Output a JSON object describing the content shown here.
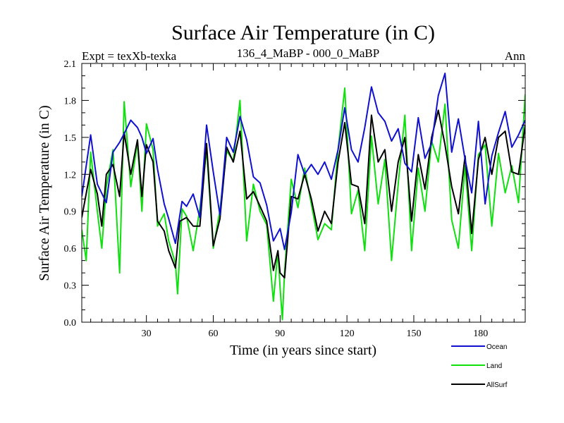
{
  "chart_data": {
    "type": "line",
    "title": "Surface Air Temperature (in C)",
    "left_label": "Expt = texXb-texka",
    "center_label": "136_4_MaBP - 000_0_MaBP",
    "right_label": "Ann",
    "xlabel": "Time (in years since start)",
    "ylabel": "Surface Air Temperature (in C)",
    "xlim": [
      1,
      200
    ],
    "ylim": [
      0.0,
      2.1
    ],
    "x_ticks": [
      30,
      60,
      90,
      120,
      150,
      180
    ],
    "x_tick_labels": [
      "30",
      "60",
      "90",
      "120",
      "150",
      "180"
    ],
    "y_ticks": [
      0.0,
      0.3,
      0.6,
      0.9,
      1.2,
      1.5,
      1.8,
      2.1
    ],
    "y_tick_labels": [
      "0.0",
      "0.3",
      "0.6",
      "0.9",
      "1.2",
      "1.5",
      "1.8",
      "2.1"
    ],
    "grid": false,
    "legend_position": "bottom-right",
    "series": [
      {
        "name": "Ocean",
        "color": "#1010d0",
        "x": [
          1,
          5,
          8,
          12,
          15,
          18,
          20,
          23,
          26,
          28,
          30,
          33,
          35,
          38,
          40,
          43,
          46,
          48,
          51,
          54,
          57,
          60,
          63,
          66,
          69,
          72,
          75,
          78,
          81,
          84,
          87,
          90,
          92,
          95,
          98,
          101,
          104,
          107,
          110,
          113,
          116,
          119,
          122,
          125,
          128,
          131,
          134,
          137,
          140,
          143,
          146,
          149,
          152,
          155,
          158,
          161,
          164,
          167,
          170,
          173,
          176,
          179,
          182,
          185,
          188,
          191,
          194,
          197,
          200
        ],
        "values": [
          1.02,
          1.52,
          1.12,
          0.97,
          1.38,
          1.46,
          1.53,
          1.64,
          1.58,
          1.5,
          1.37,
          1.49,
          1.24,
          0.96,
          0.84,
          0.64,
          0.98,
          0.94,
          1.04,
          0.85,
          1.6,
          1.22,
          0.87,
          1.5,
          1.38,
          1.67,
          1.48,
          1.18,
          1.13,
          0.95,
          0.66,
          0.76,
          0.59,
          0.89,
          1.36,
          1.2,
          1.28,
          1.2,
          1.3,
          1.16,
          1.4,
          1.74,
          1.4,
          1.3,
          1.58,
          1.91,
          1.7,
          1.63,
          1.47,
          1.57,
          1.29,
          1.22,
          1.66,
          1.33,
          1.45,
          1.84,
          2.02,
          1.38,
          1.65,
          1.32,
          1.05,
          1.63,
          0.96,
          1.35,
          1.54,
          1.71,
          1.42,
          1.52,
          1.64
        ]
      },
      {
        "name": "Land",
        "color": "#10e010",
        "x": [
          1,
          3,
          5,
          8,
          10,
          12,
          15,
          18,
          20,
          23,
          26,
          28,
          30,
          33,
          35,
          38,
          40,
          43,
          44,
          46,
          48,
          51,
          54,
          57,
          60,
          63,
          66,
          69,
          72,
          75,
          78,
          81,
          84,
          87,
          89,
          90,
          91,
          92,
          95,
          98,
          101,
          104,
          107,
          110,
          113,
          116,
          119,
          122,
          125,
          128,
          131,
          134,
          137,
          140,
          143,
          146,
          149,
          152,
          155,
          158,
          161,
          164,
          167,
          170,
          173,
          176,
          179,
          182,
          185,
          188,
          191,
          194,
          197,
          200
        ],
        "values": [
          0.75,
          0.5,
          1.38,
          0.9,
          0.6,
          1.1,
          1.4,
          0.4,
          1.79,
          1.1,
          1.46,
          0.9,
          1.61,
          1.4,
          0.78,
          0.88,
          0.66,
          0.48,
          0.23,
          0.92,
          0.86,
          0.58,
          0.92,
          1.4,
          0.6,
          0.91,
          1.39,
          1.31,
          1.8,
          0.66,
          1.12,
          0.9,
          0.79,
          0.17,
          0.58,
          0.28,
          0.02,
          0.4,
          1.16,
          0.93,
          1.25,
          0.96,
          0.67,
          0.8,
          0.75,
          1.4,
          1.9,
          0.88,
          1.07,
          0.58,
          1.51,
          0.96,
          1.32,
          0.5,
          1.12,
          1.68,
          0.58,
          1.25,
          0.9,
          1.47,
          1.3,
          1.77,
          0.83,
          0.6,
          1.27,
          0.58,
          1.36,
          1.44,
          0.78,
          1.37,
          1.05,
          1.27,
          0.97,
          1.85
        ]
      },
      {
        "name": "AllSurf",
        "color": "#000000",
        "x": [
          1,
          5,
          8,
          10,
          12,
          15,
          18,
          20,
          23,
          26,
          28,
          30,
          33,
          35,
          38,
          40,
          43,
          45,
          48,
          51,
          54,
          57,
          60,
          63,
          66,
          69,
          72,
          75,
          78,
          81,
          84,
          87,
          89,
          90,
          92,
          95,
          98,
          101,
          104,
          107,
          110,
          113,
          116,
          119,
          122,
          125,
          128,
          131,
          134,
          137,
          140,
          143,
          146,
          149,
          152,
          155,
          158,
          161,
          164,
          167,
          170,
          173,
          176,
          179,
          182,
          185,
          188,
          191,
          194,
          197,
          200
        ],
        "values": [
          0.85,
          1.24,
          1.04,
          0.78,
          1.2,
          1.28,
          1.02,
          1.54,
          1.2,
          1.48,
          1.02,
          1.44,
          1.3,
          0.82,
          0.74,
          0.58,
          0.44,
          0.82,
          0.85,
          0.78,
          0.78,
          1.45,
          0.62,
          0.84,
          1.42,
          1.3,
          1.55,
          1.0,
          1.06,
          0.94,
          0.82,
          0.42,
          0.58,
          0.4,
          0.36,
          1.02,
          1.0,
          1.2,
          1.0,
          0.74,
          0.9,
          0.8,
          1.3,
          1.62,
          1.12,
          1.1,
          0.8,
          1.68,
          1.3,
          1.4,
          0.9,
          1.3,
          1.5,
          0.82,
          1.36,
          1.08,
          1.5,
          1.72,
          1.44,
          1.1,
          0.88,
          1.35,
          0.72,
          1.32,
          1.5,
          1.2,
          1.5,
          1.55,
          1.22,
          1.2,
          1.6
        ]
      }
    ]
  }
}
